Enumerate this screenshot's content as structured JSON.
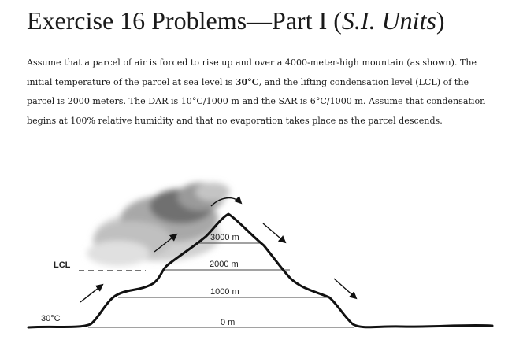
{
  "title": {
    "main": "Exercise 16 Problems—Part I (",
    "italic": "S.I. Units",
    "close": ")"
  },
  "paragraph": {
    "p1": "Assume that a parcel of air is forced to rise up and over a 4000-meter-high mountain (as shown). The initial temperature of the parcel at sea level is ",
    "temp": "30°C",
    "p2": ", and the lifting condensation level (LCL) of the parcel is 2000 meters. The DAR is 10°C/1000 m and the SAR is 6°C/1000 m. Assume that condensation begins at 100% relative humidity and that no evaporation takes place as the parcel descends."
  },
  "figure": {
    "lcl_label": "LCL",
    "start_temp": "30°C",
    "altitudes": {
      "h3000": "3000 m",
      "h2000": "2000 m",
      "h1000": "1000 m",
      "h0": "0 m"
    }
  }
}
